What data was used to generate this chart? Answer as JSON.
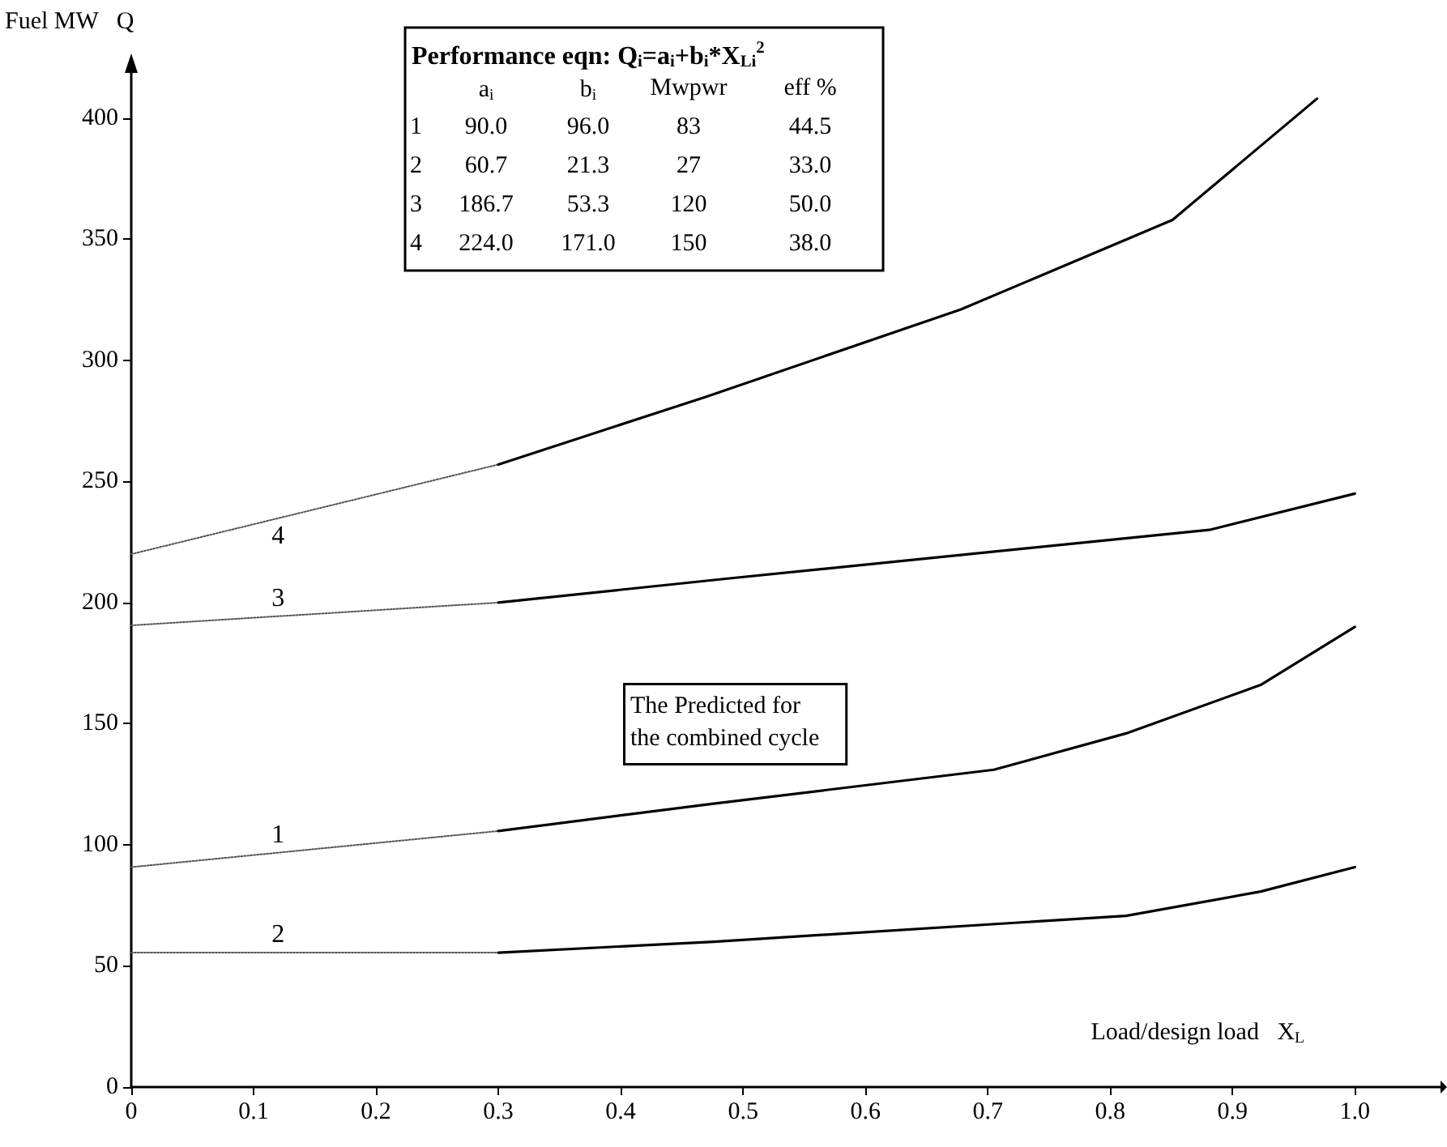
{
  "chart_data": {
    "type": "line",
    "xlabel": "Load/design load   X$_{L}$",
    "ylabel": "Fuel MW   Q",
    "xlim": [
      0,
      1.07
    ],
    "ylim": [
      0,
      420
    ],
    "xticks": [
      0,
      0.1,
      0.2,
      0.3,
      0.4,
      0.5,
      0.6,
      0.7,
      0.8,
      0.9,
      {
        "value": 1,
        "label": "1.0"
      }
    ],
    "yticks": [
      0,
      50,
      100,
      150,
      200,
      250,
      300,
      350,
      400
    ],
    "grid": false,
    "legend": false,
    "marker": "none",
    "series": [
      {
        "name": "4",
        "color": "#555555",
        "line_style": "dotted",
        "x": [
          0,
          0.3
        ],
        "values": [
          220,
          257
        ]
      },
      {
        "color": "#000000",
        "line_style": "solid",
        "x": [
          0.3,
          0.47,
          0.678,
          0.851,
          0.969
        ],
        "values": [
          257,
          285,
          321,
          358,
          408
        ]
      },
      {
        "name": "3",
        "color": "#555555",
        "line_style": "dotted",
        "x": [
          0,
          0.3
        ],
        "values": [
          190.6,
          200
        ]
      },
      {
        "color": "#000000",
        "line_style": "solid",
        "x": [
          0.3,
          0.489,
          0.881,
          1.0
        ],
        "values": [
          200,
          210,
          230,
          245
        ]
      },
      {
        "name": "1",
        "color": "#555555",
        "line_style": "dotted",
        "x": [
          0,
          0.3
        ],
        "values": [
          90.8,
          105.7
        ]
      },
      {
        "color": "#000000",
        "line_style": "solid",
        "x": [
          0.3,
          0.476,
          0.705,
          0.813,
          0.923,
          1.0
        ],
        "values": [
          105.7,
          117,
          131,
          146,
          166,
          190
        ]
      },
      {
        "name": "2",
        "color": "#555555",
        "line_style": "dotted",
        "x": [
          0,
          0.3
        ],
        "values": [
          55.5,
          55.5
        ]
      },
      {
        "color": "#000000",
        "line_style": "solid",
        "x": [
          0.3,
          0.476,
          0.813,
          0.923,
          1.0
        ],
        "values": [
          55.5,
          60,
          70.7,
          80.7,
          90.8
        ]
      }
    ],
    "annotations": [
      "Performance eqn: Q$_{i}$=a$_{i}$+b$_{i}$*X$_{Li}$$^{2}$",
      "\ta$_{i}$\tb$_{i}$\tMwpwr\teff %",
      "1\t90.0\t96.0\t83\t44.5",
      "2\t60.7\t21.3\t27\t33.0",
      "3\t186.7\t53.3\t120\t50.0",
      "4\t224.0\t171.0\t150\t38.0",
      "The Predicted for\nthe combined cycle"
    ]
  }
}
